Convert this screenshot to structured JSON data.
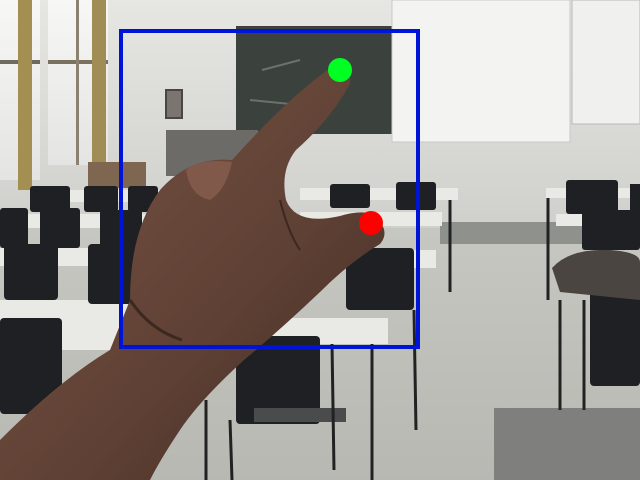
{
  "scene": {
    "description_free": true,
    "wall_color": "#dcdcd8",
    "floor_color": "#c9c9c4",
    "desk_color": "#e9e9e6",
    "chair_color": "#1e2023",
    "board_color": "#3b423d",
    "skin_color": "#6b4a3a"
  },
  "overlay": {
    "box_color": "#0014d8",
    "index_tip_color": "#00ff22",
    "middle_tip_color": "#ff0000"
  }
}
